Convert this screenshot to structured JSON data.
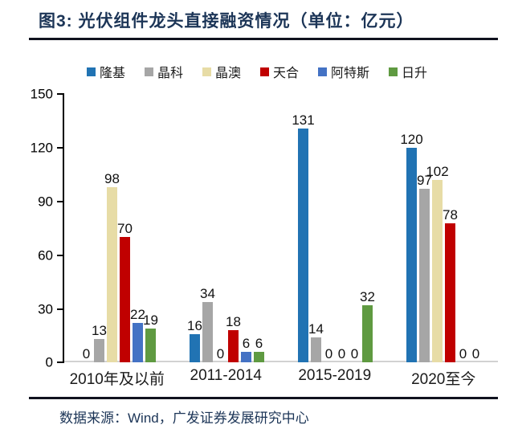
{
  "title": "图3:  光伏组件龙头直接融资情况（单位：亿元）",
  "footer": {
    "source": "数据来源：Wind，广发证券发展研究中心"
  },
  "colors": {
    "title_text": "#1C3557",
    "rule": "#10121f",
    "axis": "#000000",
    "baseline": "#d2d2d2"
  },
  "chart_data": {
    "type": "bar",
    "title": "图3: 光伏组件龙头直接融资情况（单位：亿元）",
    "categories": [
      "2010年及以前",
      "2011-2014",
      "2015-2019",
      "2020至今"
    ],
    "series": [
      {
        "name": "隆基",
        "color": "#2173B3",
        "values": [
          0,
          16,
          131,
          120
        ]
      },
      {
        "name": "晶科",
        "color": "#A6A6A6",
        "values": [
          13,
          34,
          14,
          97
        ]
      },
      {
        "name": "晶澳",
        "color": "#E7DCA6",
        "values": [
          98,
          0,
          0,
          102
        ]
      },
      {
        "name": "天合",
        "color": "#C00000",
        "values": [
          70,
          18,
          0,
          78
        ]
      },
      {
        "name": "阿特斯",
        "color": "#4472C4",
        "values": [
          22,
          6,
          0,
          0
        ]
      },
      {
        "name": "日升",
        "color": "#5F9A41",
        "values": [
          19,
          6,
          32,
          0
        ]
      }
    ],
    "xlabel": "",
    "ylabel": "",
    "ylim": [
      0,
      150
    ],
    "yticks": [
      0,
      30,
      60,
      90,
      120,
      150
    ],
    "grid": false,
    "legend_position": "top",
    "value_labels": true,
    "unit": "亿元"
  }
}
